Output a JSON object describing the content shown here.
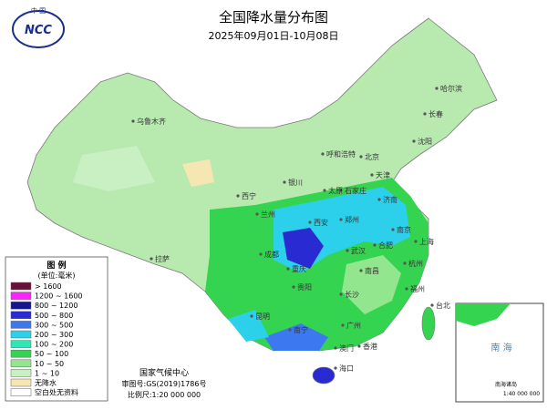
{
  "header": {
    "logo_top": "中 国",
    "logo_abbr": "NCC",
    "title": "全国降水量分布图",
    "subtitle": "2025年09月01日-10月08日"
  },
  "cities": [
    "乌鲁木齐",
    "哈尔滨",
    "长春",
    "沈阳",
    "呼和浩特",
    "北京",
    "天津",
    "石家庄",
    "太原",
    "济南",
    "银川",
    "西宁",
    "兰州",
    "郑州",
    "西安",
    "合肥",
    "南京",
    "上海",
    "武汉",
    "杭州",
    "成都",
    "重庆",
    "拉萨",
    "长沙",
    "南昌",
    "福州",
    "台北",
    "贵阳",
    "昆明",
    "南宁",
    "广州",
    "香港",
    "澳门",
    "海口"
  ],
  "legend": {
    "title": "图 例",
    "unit": "(单位:毫米)",
    "items": [
      {
        "label": "> 1600",
        "color": "#6b0f3a"
      },
      {
        "label": "1200 ~ 1600",
        "color": "#ff22ff"
      },
      {
        "label": "800 ~ 1200",
        "color": "#14148c"
      },
      {
        "label": "500 ~ 800",
        "color": "#2a2ad2"
      },
      {
        "label": "300 ~ 500",
        "color": "#3c78f0"
      },
      {
        "label": "200 ~ 300",
        "color": "#2cd0ea"
      },
      {
        "label": "100 ~ 200",
        "color": "#30e6b4"
      },
      {
        "label": "50 ~ 100",
        "color": "#34d450"
      },
      {
        "label": "10 ~ 50",
        "color": "#92e68e"
      },
      {
        "label": "1 ~ 10",
        "color": "#c8f0c2"
      },
      {
        "label": "无降水",
        "color": "#f6e6b2"
      },
      {
        "label": "空白处无资料",
        "color": "#ffffff"
      }
    ]
  },
  "footer": {
    "org": "国家气候中心",
    "approval": "审图号:GS(2019)1786号",
    "scale": "比例尺:1:20 000 000"
  },
  "inset": {
    "sea": "南 海",
    "islands": "南海诸岛",
    "scale": "1:40 000 000"
  }
}
